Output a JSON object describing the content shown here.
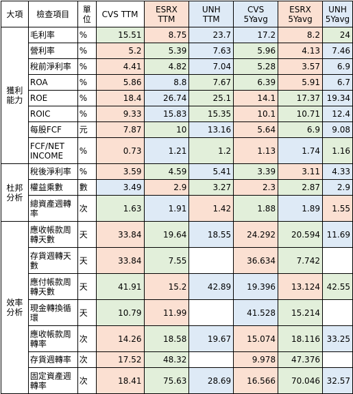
{
  "headers": {
    "category": "大項",
    "item": "檢查項目",
    "unit": "單位",
    "cols": [
      "CVS TTM",
      "ESRX\nTTM",
      "UNH\nTTM",
      "CVS\n5Yavg",
      "ESRX\n5Yavg",
      "UNH\n5Yavg"
    ]
  },
  "colors": {
    "green": "#e2efda",
    "rose": "#fbe0d2",
    "blue": "#deeaf6",
    "white": "#ffffff"
  },
  "groups": [
    {
      "label": "獲利\n能力",
      "rows": [
        0,
        1,
        2,
        3,
        4,
        5,
        6,
        7
      ]
    },
    {
      "label": "杜邦\n分析",
      "rows": [
        8,
        9,
        10
      ]
    },
    {
      "label": "效率\n分析",
      "rows": [
        11,
        12,
        13,
        14,
        15,
        16,
        17
      ]
    }
  ],
  "rows": [
    {
      "item": "毛利率",
      "unit": "%",
      "values": [
        "15.51",
        "8.75",
        "23.7",
        "17.2",
        "8.2",
        "24"
      ],
      "colors": [
        "g",
        "r",
        "b",
        "b",
        "r",
        "g"
      ]
    },
    {
      "item": "營利率",
      "unit": "%",
      "values": [
        "5.2",
        "5.39",
        "7.63",
        "5.96",
        "4.13",
        "7.46"
      ],
      "colors": [
        "r",
        "g",
        "b",
        "g",
        "r",
        "b"
      ]
    },
    {
      "item": "稅前淨利率",
      "unit": "%",
      "values": [
        "4.41",
        "4.82",
        "7.04",
        "5.28",
        "3.57",
        "6.9"
      ],
      "colors": [
        "r",
        "g",
        "b",
        "g",
        "r",
        "b"
      ]
    },
    {
      "item": "ROA",
      "unit": "%",
      "values": [
        "5.86",
        "8.8",
        "7.67",
        "6.39",
        "5.91",
        "6.7"
      ],
      "colors": [
        "r",
        "b",
        "g",
        "g",
        "r",
        "b"
      ]
    },
    {
      "item": "ROE",
      "unit": "%",
      "values": [
        "18.4",
        "26.74",
        "25.1",
        "14.1",
        "17.37",
        "19.34"
      ],
      "colors": [
        "r",
        "b",
        "g",
        "r",
        "g",
        "b"
      ]
    },
    {
      "item": "ROIC",
      "unit": "%",
      "values": [
        "9.33",
        "15.83",
        "15.35",
        "10.1",
        "10.71",
        "12.4"
      ],
      "colors": [
        "r",
        "b",
        "g",
        "r",
        "g",
        "b"
      ]
    },
    {
      "item": "每股FCF",
      "unit": "元",
      "values": [
        "7.87",
        "10",
        "13.16",
        "5.64",
        "6.9",
        "9.08"
      ],
      "colors": [
        "r",
        "g",
        "b",
        "r",
        "g",
        "b"
      ]
    },
    {
      "item": "FCF/NET\nINCOME",
      "unit": "%",
      "values": [
        "0.73",
        "1.21",
        "1.2",
        "1.13",
        "1.74",
        "1.16"
      ],
      "colors": [
        "r",
        "b",
        "g",
        "r",
        "b",
        "g"
      ]
    },
    {
      "item": "稅後淨利率",
      "unit": "%",
      "values": [
        "3.59",
        "4.59",
        "5.41",
        "3.39",
        "3.11",
        "4.33"
      ],
      "colors": [
        "r",
        "g",
        "b",
        "g",
        "r",
        "b"
      ]
    },
    {
      "item": "權益乘數",
      "unit": "數",
      "values": [
        "3.49",
        "2.9",
        "3.27",
        "2.3",
        "2.87",
        "2.9"
      ],
      "colors": [
        "b",
        "r",
        "g",
        "r",
        "g",
        "b"
      ]
    },
    {
      "item": "總資產週轉\n率",
      "unit": "次",
      "values": [
        "1.63",
        "1.91",
        "1.42",
        "1.88",
        "1.89",
        "1.55"
      ],
      "colors": [
        "g",
        "b",
        "r",
        "g",
        "b",
        "r"
      ]
    },
    {
      "item": "應收帳款周\n轉天數",
      "unit": "天",
      "values": [
        "33.84",
        "19.64",
        "18.55",
        "24.292",
        "20.594",
        "11.69"
      ],
      "colors": [
        "r",
        "g",
        "b",
        "r",
        "g",
        "b"
      ]
    },
    {
      "item": "存貨週轉天\n數",
      "unit": "天",
      "values": [
        "33.84",
        "7.55",
        "",
        "36.634",
        "7.742",
        ""
      ],
      "colors": [
        "r",
        "g",
        "w",
        "r",
        "g",
        "w"
      ]
    },
    {
      "item": "應付帳款周\n轉天數",
      "unit": "天",
      "values": [
        "41.91",
        "15.2",
        "42.89",
        "19.396",
        "13.124",
        "42.55"
      ],
      "colors": [
        "g",
        "r",
        "b",
        "b",
        "r",
        "g"
      ]
    },
    {
      "item": "現金轉換循\n環",
      "unit": "天",
      "values": [
        "10.79",
        "11.99",
        "",
        "41.528",
        "15.214",
        ""
      ],
      "colors": [
        "g",
        "r",
        "w",
        "b",
        "g",
        "w"
      ]
    },
    {
      "item": "應收帳款周\n轉率",
      "unit": "次",
      "values": [
        "14.26",
        "18.58",
        "19.67",
        "15.074",
        "18.116",
        "33.25"
      ],
      "colors": [
        "r",
        "g",
        "b",
        "r",
        "g",
        "b"
      ]
    },
    {
      "item": "存貨週轉率",
      "unit": "次",
      "values": [
        "17.52",
        "48.32",
        "",
        "9.978",
        "47.376",
        ""
      ],
      "colors": [
        "r",
        "g",
        "w",
        "r",
        "g",
        "w"
      ]
    },
    {
      "item": "固定資產週\n轉率",
      "unit": "次",
      "values": [
        "18.41",
        "75.63",
        "28.69",
        "16.566",
        "70.046",
        "32.57"
      ],
      "colors": [
        "r",
        "g",
        "b",
        "r",
        "g",
        "b"
      ]
    }
  ]
}
